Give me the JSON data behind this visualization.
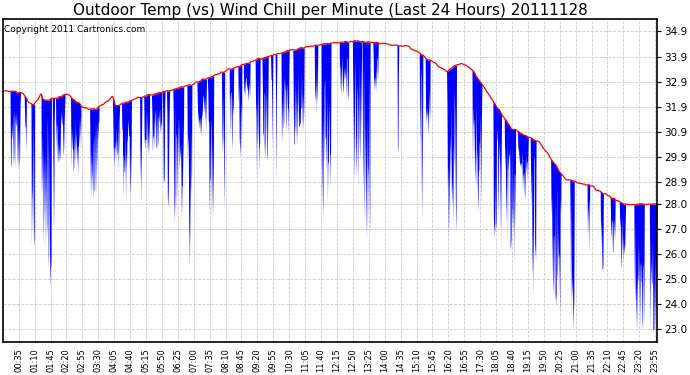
{
  "title": "Outdoor Temp (vs) Wind Chill per Minute (Last 24 Hours) 20111128",
  "copyright": "Copyright 2011 Cartronics.com",
  "yticks": [
    23.0,
    24.0,
    25.0,
    26.0,
    27.0,
    28.0,
    28.9,
    29.9,
    30.9,
    31.9,
    32.9,
    33.9,
    34.9
  ],
  "ylim": [
    22.5,
    35.4
  ],
  "bg_color": "#ffffff",
  "plot_bg": "#ffffff",
  "red_color": "#ff0000",
  "blue_color": "#0000ff",
  "grid_color": "#cccccc",
  "title_fontsize": 11,
  "copyright_fontsize": 6.5,
  "figwidth": 6.9,
  "figheight": 3.75,
  "dpi": 100
}
